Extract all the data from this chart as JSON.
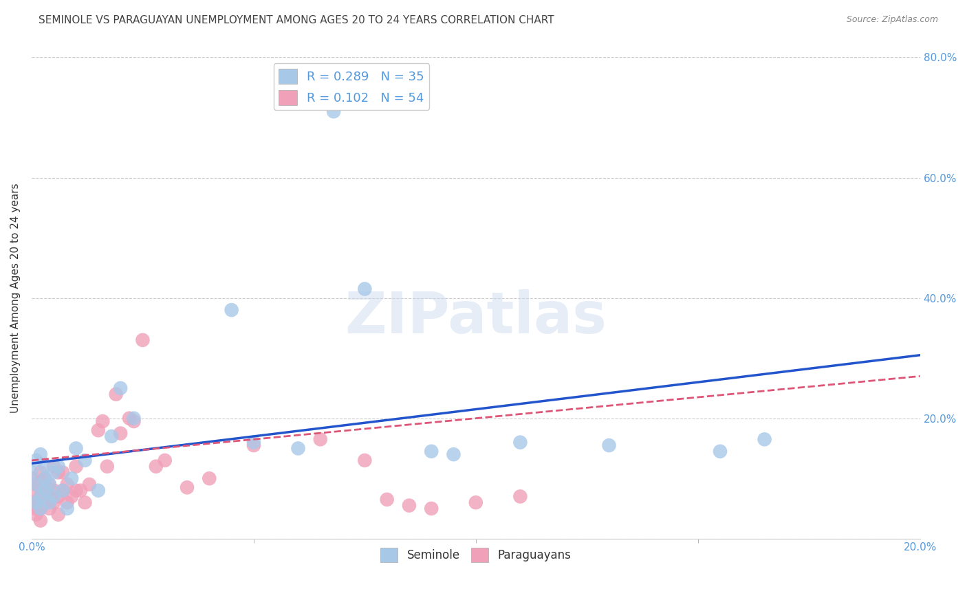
{
  "title": "SEMINOLE VS PARAGUAYAN UNEMPLOYMENT AMONG AGES 20 TO 24 YEARS CORRELATION CHART",
  "source": "Source: ZipAtlas.com",
  "ylabel": "Unemployment Among Ages 20 to 24 years",
  "xlim": [
    0,
    0.2
  ],
  "ylim": [
    0,
    0.8
  ],
  "xtick_positions": [
    0.0,
    0.2
  ],
  "xtick_labels": [
    "0.0%",
    "20.0%"
  ],
  "ytick_positions": [
    0.2,
    0.4,
    0.6,
    0.8
  ],
  "ytick_labels": [
    "20.0%",
    "40.0%",
    "60.0%",
    "80.0%"
  ],
  "grid_yticks": [
    0.0,
    0.2,
    0.4,
    0.6,
    0.8
  ],
  "seminole_color": "#a8c8e8",
  "paraguayan_color": "#f0a0b8",
  "seminole_line_color": "#2255cc",
  "paraguayan_line_color": "#dd5577",
  "legend_seminole_R": "0.289",
  "legend_seminole_N": "35",
  "legend_paraguayan_R": "0.102",
  "legend_paraguayan_N": "54",
  "watermark_text": "ZIPatlas",
  "seminole_x": [
    0.0,
    0.001,
    0.001,
    0.001,
    0.002,
    0.002,
    0.002,
    0.003,
    0.003,
    0.003,
    0.004,
    0.004,
    0.005,
    0.005,
    0.006,
    0.007,
    0.008,
    0.009,
    0.01,
    0.012,
    0.015,
    0.018,
    0.02,
    0.023,
    0.045,
    0.05,
    0.06,
    0.075,
    0.09,
    0.095,
    0.11,
    0.13,
    0.155,
    0.165,
    0.068
  ],
  "seminole_y": [
    0.11,
    0.09,
    0.13,
    0.06,
    0.14,
    0.07,
    0.05,
    0.12,
    0.08,
    0.1,
    0.06,
    0.09,
    0.11,
    0.07,
    0.12,
    0.08,
    0.05,
    0.1,
    0.15,
    0.13,
    0.08,
    0.17,
    0.25,
    0.2,
    0.38,
    0.16,
    0.15,
    0.415,
    0.145,
    0.14,
    0.16,
    0.155,
    0.145,
    0.165,
    0.71
  ],
  "paraguayan_x": [
    0.0,
    0.0,
    0.001,
    0.001,
    0.001,
    0.001,
    0.001,
    0.002,
    0.002,
    0.002,
    0.002,
    0.003,
    0.003,
    0.003,
    0.003,
    0.004,
    0.004,
    0.004,
    0.005,
    0.005,
    0.005,
    0.006,
    0.006,
    0.006,
    0.007,
    0.007,
    0.008,
    0.008,
    0.009,
    0.01,
    0.01,
    0.011,
    0.012,
    0.013,
    0.015,
    0.016,
    0.017,
    0.019,
    0.02,
    0.022,
    0.023,
    0.025,
    0.028,
    0.03,
    0.035,
    0.04,
    0.05,
    0.065,
    0.075,
    0.08,
    0.085,
    0.09,
    0.1,
    0.11
  ],
  "paraguayan_y": [
    0.06,
    0.1,
    0.08,
    0.04,
    0.06,
    0.09,
    0.05,
    0.07,
    0.11,
    0.05,
    0.03,
    0.09,
    0.06,
    0.08,
    0.1,
    0.07,
    0.05,
    0.09,
    0.12,
    0.08,
    0.06,
    0.11,
    0.07,
    0.04,
    0.08,
    0.11,
    0.06,
    0.09,
    0.07,
    0.08,
    0.12,
    0.08,
    0.06,
    0.09,
    0.18,
    0.195,
    0.12,
    0.24,
    0.175,
    0.2,
    0.195,
    0.33,
    0.12,
    0.13,
    0.085,
    0.1,
    0.155,
    0.165,
    0.13,
    0.065,
    0.055,
    0.05,
    0.06,
    0.07
  ],
  "seminole_intercept": 0.125,
  "seminole_slope": 0.9,
  "paraguayan_intercept": 0.13,
  "paraguayan_slope": 0.7,
  "grid_color": "#cccccc",
  "background_color": "#ffffff",
  "title_fontsize": 11,
  "axis_label_color": "#5599dd",
  "ylabel_color": "#333333"
}
